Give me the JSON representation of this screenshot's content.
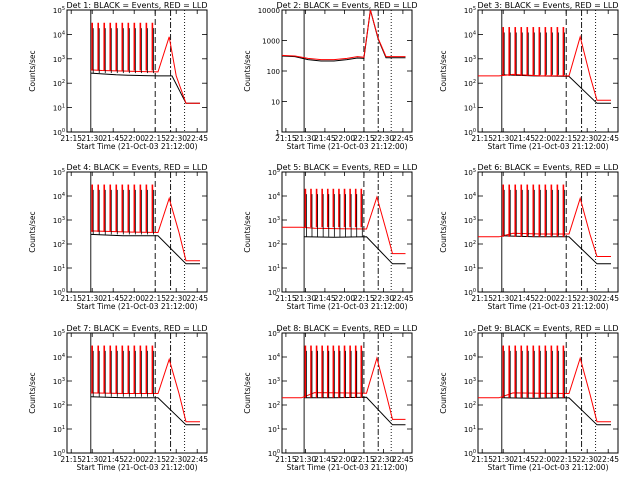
{
  "figure": {
    "colors": {
      "events": "#000000",
      "lld": "#ff0000",
      "frame": "#000000"
    },
    "xlabel": "Start Time (21-Oct-03 21:12:00)",
    "ylabel_log": "Counts/sec",
    "ylabel_lin": "Counts/sec"
  },
  "chart_data": [
    {
      "type": "line",
      "title": "Det 1: BLACK = Events, RED = LLD",
      "xlabel": "Start Time (21-Oct-03 21:12:00)",
      "ylabel": "Counts/sec",
      "x_ticks": [
        "21:15",
        "21:30",
        "21:45",
        "22:00",
        "22:15",
        "22:30",
        "22:45"
      ],
      "y_ticks": [
        "10^0",
        "10^1",
        "10^2",
        "10^3",
        "10^4",
        "10^5"
      ],
      "yscale": "log",
      "ylim": [
        1,
        100000
      ],
      "xlim_minutes_after_start": [
        0,
        100
      ],
      "legend": "none",
      "annotations": [
        "vertical solid line ~21:29",
        "vertical dashed line ~22:16",
        "vertical dash-dot line ~22:27",
        "vertical dotted line ~22:37"
      ],
      "series": [
        {
          "name": "BLACK = Events",
          "color": "#000000",
          "points": [
            [
              17,
              260
            ],
            [
              25,
              240
            ],
            [
              35,
              220
            ],
            [
              45,
              210
            ],
            [
              55,
              205
            ],
            [
              65,
              200
            ],
            [
              75,
              200
            ],
            [
              85,
              15
            ],
            [
              95,
              15
            ]
          ]
        },
        {
          "name": "RED = LLD",
          "color": "#ff0000",
          "points": [
            [
              17,
              350
            ],
            [
              25,
              330
            ],
            [
              35,
              320
            ],
            [
              45,
              310
            ],
            [
              55,
              300
            ],
            [
              65,
              290
            ],
            [
              73,
              8000
            ],
            [
              78,
              200
            ],
            [
              85,
              15
            ],
            [
              95,
              15
            ]
          ]
        }
      ],
      "spikes": {
        "count": 11,
        "peak": 30000,
        "x_range": [
          18,
          61
        ]
      }
    },
    {
      "type": "line",
      "title": "Det 2: BLACK = Events, RED = LLD",
      "xlabel": "Start Time (21-Oct-03 21:12:00)",
      "ylabel": "Counts/sec",
      "x_ticks": [
        "21:15",
        "21:30",
        "21:45",
        "22:00",
        "22:15",
        "22:30",
        "22:45"
      ],
      "y_ticks": [
        "1",
        "10",
        "100",
        "1000",
        "10000"
      ],
      "yscale": "log",
      "ylim": [
        1,
        15000
      ],
      "xlim_minutes_after_start": [
        0,
        100
      ],
      "legend": "none",
      "series": [
        {
          "name": "BLACK = Events",
          "color": "#000000",
          "points": [
            [
              0,
              400
            ],
            [
              10,
              380
            ],
            [
              20,
              300
            ],
            [
              30,
              270
            ],
            [
              40,
              270
            ],
            [
              50,
              300
            ],
            [
              58,
              340
            ],
            [
              63,
              330
            ],
            [
              68,
              15000
            ],
            [
              74,
              1500
            ],
            [
              80,
              350
            ],
            [
              95,
              350
            ]
          ]
        },
        {
          "name": "RED = LLD",
          "color": "#ff0000",
          "points": [
            [
              0,
              420
            ],
            [
              10,
              400
            ],
            [
              20,
              330
            ],
            [
              30,
              300
            ],
            [
              40,
              300
            ],
            [
              50,
              330
            ],
            [
              58,
              380
            ],
            [
              63,
              360
            ],
            [
              68,
              15000
            ],
            [
              74,
              1600
            ],
            [
              80,
              380
            ],
            [
              95,
              380
            ]
          ]
        }
      ]
    },
    {
      "type": "line",
      "title": "Det 3: BLACK = Events, RED = LLD",
      "xlabel": "Start Time (21-Oct-03 21:12:00)",
      "ylabel": "Counts/sec",
      "x_ticks": [
        "21:15",
        "21:30",
        "21:45",
        "22:00",
        "22:15",
        "22:30",
        "22:45"
      ],
      "y_ticks": [
        "10^0",
        "10^1",
        "10^2",
        "10^3",
        "10^4",
        "10^5"
      ],
      "yscale": "log",
      "ylim": [
        1,
        100000
      ],
      "xlim_minutes_after_start": [
        0,
        100
      ],
      "legend": "none",
      "series": [
        {
          "name": "BLACK = Events",
          "color": "#000000",
          "points": [
            [
              17,
              220
            ],
            [
              40,
              200
            ],
            [
              65,
              190
            ],
            [
              85,
              15
            ],
            [
              95,
              15
            ]
          ]
        },
        {
          "name": "RED = LLD",
          "color": "#ff0000",
          "points": [
            [
              0,
              200
            ],
            [
              15,
              200
            ],
            [
              25,
              230
            ],
            [
              45,
              200
            ],
            [
              65,
              200
            ],
            [
              73,
              8000
            ],
            [
              80,
              200
            ],
            [
              85,
              20
            ],
            [
              95,
              20
            ]
          ]
        }
      ],
      "spikes": {
        "count": 11,
        "peak": 20000,
        "x_range": [
          18,
          61
        ]
      }
    },
    {
      "type": "line",
      "title": "Det 4: BLACK = Events, RED = LLD",
      "xlabel": "Start Time (21-Oct-03 21:12:00)",
      "ylabel": "Counts/sec",
      "x_ticks": [
        "21:15",
        "21:30",
        "21:45",
        "22:00",
        "22:15",
        "22:30",
        "22:45"
      ],
      "y_ticks": [
        "10^0",
        "10^1",
        "10^2",
        "10^3",
        "10^4",
        "10^5"
      ],
      "yscale": "log",
      "ylim": [
        1,
        100000
      ],
      "xlim_minutes_after_start": [
        0,
        100
      ],
      "legend": "none",
      "series": [
        {
          "name": "BLACK = Events",
          "color": "#000000",
          "points": [
            [
              17,
              250
            ],
            [
              40,
              220
            ],
            [
              65,
              220
            ],
            [
              85,
              15
            ],
            [
              95,
              15
            ]
          ]
        },
        {
          "name": "RED = LLD",
          "color": "#ff0000",
          "points": [
            [
              17,
              350
            ],
            [
              40,
              320
            ],
            [
              65,
              300
            ],
            [
              73,
              8000
            ],
            [
              80,
              300
            ],
            [
              85,
              20
            ],
            [
              95,
              20
            ]
          ]
        }
      ],
      "spikes": {
        "count": 11,
        "peak": 30000,
        "x_range": [
          18,
          61
        ]
      }
    },
    {
      "type": "line",
      "title": "Det 5: BLACK = Events, RED = LLD",
      "xlabel": "Start Time (21-Oct-03 21:12:00)",
      "ylabel": "Counts/sec",
      "x_ticks": [
        "21:15",
        "21:30",
        "21:45",
        "22:00",
        "22:15",
        "22:30",
        "22:45"
      ],
      "y_ticks": [
        "10^0",
        "10^1",
        "10^2",
        "10^3",
        "10^4",
        "10^5"
      ],
      "yscale": "log",
      "ylim": [
        1,
        100000
      ],
      "xlim_minutes_after_start": [
        0,
        100
      ],
      "legend": "none",
      "series": [
        {
          "name": "BLACK = Events",
          "color": "#000000",
          "points": [
            [
              17,
              200
            ],
            [
              40,
              190
            ],
            [
              65,
              200
            ],
            [
              85,
              15
            ],
            [
              95,
              15
            ]
          ]
        },
        {
          "name": "RED = LLD",
          "color": "#ff0000",
          "points": [
            [
              0,
              500
            ],
            [
              15,
              500
            ],
            [
              25,
              450
            ],
            [
              45,
              430
            ],
            [
              65,
              420
            ],
            [
              73,
              9000
            ],
            [
              80,
              400
            ],
            [
              85,
              40
            ],
            [
              95,
              40
            ]
          ]
        }
      ],
      "spikes": {
        "count": 11,
        "peak": 20000,
        "x_range": [
          18,
          61
        ]
      }
    },
    {
      "type": "line",
      "title": "Det 6: BLACK = Events, RED = LLD",
      "xlabel": "Start Time (21-Oct-03 21:12:00)",
      "ylabel": "Counts/sec",
      "x_ticks": [
        "21:15",
        "21:30",
        "21:45",
        "22:00",
        "22:15",
        "22:30",
        "22:45"
      ],
      "y_ticks": [
        "10^0",
        "10^1",
        "10^2",
        "10^3",
        "10^4",
        "10^5"
      ],
      "yscale": "log",
      "ylim": [
        1,
        100000
      ],
      "xlim_minutes_after_start": [
        0,
        100
      ],
      "legend": "none",
      "series": [
        {
          "name": "BLACK = Events",
          "color": "#000000",
          "points": [
            [
              17,
              220
            ],
            [
              40,
              200
            ],
            [
              65,
              200
            ],
            [
              85,
              15
            ],
            [
              95,
              15
            ]
          ]
        },
        {
          "name": "RED = LLD",
          "color": "#ff0000",
          "points": [
            [
              0,
              200
            ],
            [
              15,
              200
            ],
            [
              25,
              280
            ],
            [
              45,
              260
            ],
            [
              65,
              260
            ],
            [
              73,
              8000
            ],
            [
              80,
              250
            ],
            [
              85,
              30
            ],
            [
              95,
              30
            ]
          ]
        }
      ],
      "spikes": {
        "count": 11,
        "peak": 30000,
        "x_range": [
          18,
          61
        ]
      }
    },
    {
      "type": "line",
      "title": "Det 7: BLACK = Events, RED = LLD",
      "xlabel": "Start Time (21-Oct-03 21:12:00)",
      "ylabel": "Counts/sec",
      "x_ticks": [
        "21:15",
        "21:30",
        "21:45",
        "22:00",
        "22:15",
        "22:30",
        "22:45"
      ],
      "y_ticks": [
        "10^0",
        "10^1",
        "10^2",
        "10^3",
        "10^4",
        "10^5"
      ],
      "yscale": "log",
      "ylim": [
        1,
        100000
      ],
      "xlim_minutes_after_start": [
        0,
        100
      ],
      "legend": "none",
      "series": [
        {
          "name": "BLACK = Events",
          "color": "#000000",
          "points": [
            [
              17,
              220
            ],
            [
              40,
              200
            ],
            [
              65,
              200
            ],
            [
              85,
              15
            ],
            [
              95,
              15
            ]
          ]
        },
        {
          "name": "RED = LLD",
          "color": "#ff0000",
          "points": [
            [
              17,
              320
            ],
            [
              40,
              300
            ],
            [
              65,
              300
            ],
            [
              73,
              8000
            ],
            [
              80,
              300
            ],
            [
              85,
              20
            ],
            [
              95,
              20
            ]
          ]
        }
      ],
      "spikes": {
        "count": 11,
        "peak": 30000,
        "x_range": [
          18,
          61
        ]
      }
    },
    {
      "type": "line",
      "title": "Det 8: BLACK = Events, RED = LLD",
      "xlabel": "Start Time (21-Oct-03 21:12:00)",
      "ylabel": "Counts/sec",
      "x_ticks": [
        "21:15",
        "21:30",
        "21:45",
        "22:00",
        "22:15",
        "22:30",
        "22:45"
      ],
      "y_ticks": [
        "10^0",
        "10^1",
        "10^2",
        "10^3",
        "10^4",
        "10^5"
      ],
      "yscale": "log",
      "ylim": [
        1,
        100000
      ],
      "xlim_minutes_after_start": [
        0,
        100
      ],
      "legend": "none",
      "series": [
        {
          "name": "BLACK = Events",
          "color": "#000000",
          "points": [
            [
              17,
              200
            ],
            [
              40,
              200
            ],
            [
              65,
              210
            ],
            [
              85,
              15
            ],
            [
              95,
              15
            ]
          ]
        },
        {
          "name": "RED = LLD",
          "color": "#ff0000",
          "points": [
            [
              0,
              200
            ],
            [
              15,
              200
            ],
            [
              25,
              330
            ],
            [
              45,
              320
            ],
            [
              65,
              310
            ],
            [
              73,
              9000
            ],
            [
              80,
              300
            ],
            [
              85,
              25
            ],
            [
              95,
              25
            ]
          ]
        }
      ],
      "spikes": {
        "count": 11,
        "peak": 30000,
        "x_range": [
          18,
          61
        ]
      }
    },
    {
      "type": "line",
      "title": "Det 9: BLACK = Events, RED = LLD",
      "xlabel": "Start Time (21-Oct-03 21:12:00)",
      "ylabel": "Counts/sec",
      "x_ticks": [
        "21:15",
        "21:30",
        "21:45",
        "22:00",
        "22:15",
        "22:30",
        "22:45"
      ],
      "y_ticks": [
        "10^0",
        "10^1",
        "10^2",
        "10^3",
        "10^4",
        "10^5"
      ],
      "yscale": "log",
      "ylim": [
        1,
        100000
      ],
      "xlim_minutes_after_start": [
        0,
        100
      ],
      "legend": "none",
      "series": [
        {
          "name": "BLACK = Events",
          "color": "#000000",
          "points": [
            [
              17,
              200
            ],
            [
              40,
              190
            ],
            [
              65,
              200
            ],
            [
              85,
              15
            ],
            [
              95,
              15
            ]
          ]
        },
        {
          "name": "RED = LLD",
          "color": "#ff0000",
          "points": [
            [
              0,
              200
            ],
            [
              15,
              200
            ],
            [
              25,
              320
            ],
            [
              45,
              310
            ],
            [
              65,
              300
            ],
            [
              73,
              9000
            ],
            [
              80,
              280
            ],
            [
              85,
              20
            ],
            [
              95,
              20
            ]
          ]
        }
      ],
      "spikes": {
        "count": 11,
        "peak": 30000,
        "x_range": [
          18,
          61
        ]
      }
    }
  ]
}
